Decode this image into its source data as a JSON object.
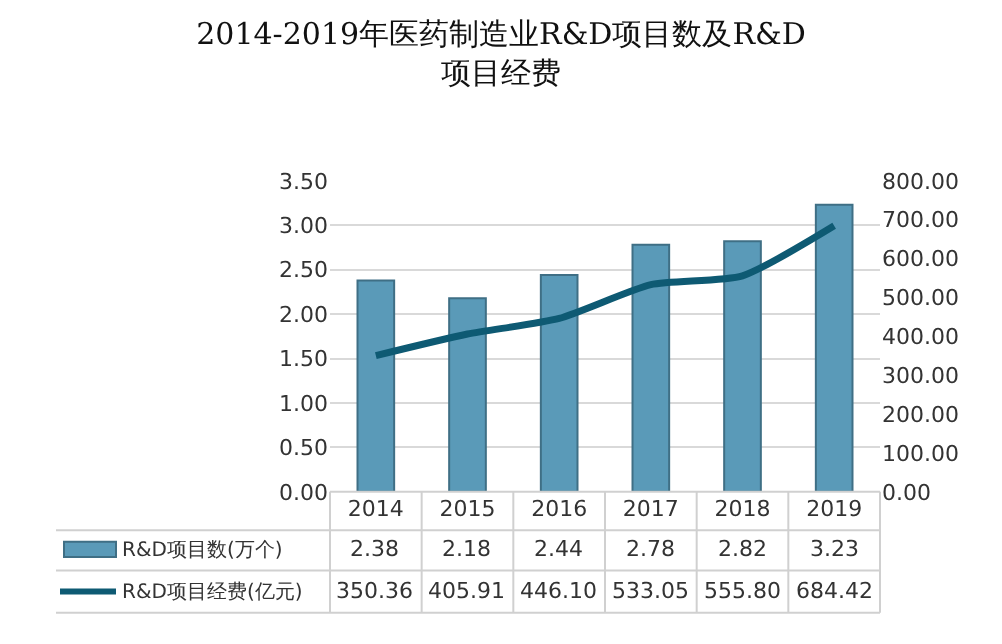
{
  "chart_data": {
    "type": "bar",
    "title": "2014-2019年医药制造业R&D项目数及R&D\n项目经费",
    "categories": [
      "2014",
      "2015",
      "2016",
      "2017",
      "2018",
      "2019"
    ],
    "series": [
      {
        "name": "R&D项目数(万个)",
        "color": "#5a9ab8",
        "values": [
          2.38,
          2.18,
          2.44,
          2.78,
          2.82,
          3.23
        ],
        "value_labels": [
          "2.38",
          "2.18",
          "2.44",
          "2.78",
          "2.82",
          "3.23"
        ]
      },
      {
        "name": "R&D项目经费(亿元)",
        "type": "line",
        "axis": "y2",
        "color": "#0e5a73",
        "values": [
          350.36,
          405.91,
          446.1,
          533.05,
          555.8,
          684.42
        ],
        "value_labels": [
          "350.36",
          "405.91",
          "446.10",
          "533.05",
          "555.80",
          "684.42"
        ]
      }
    ],
    "ylim": [
      0,
      3.5
    ],
    "yticks": [
      {
        "value": 0,
        "label": "0.00"
      },
      {
        "value": 0.5,
        "label": "0.50"
      },
      {
        "value": 1,
        "label": "1.00"
      },
      {
        "value": 1.5,
        "label": "1.50"
      },
      {
        "value": 2,
        "label": "2.00"
      },
      {
        "value": 2.5,
        "label": "2.50"
      },
      {
        "value": 3,
        "label": "3.00"
      },
      {
        "value": 3.5,
        "label": "3.50"
      }
    ],
    "y2lim": [
      0,
      800
    ],
    "y2ticks": [
      {
        "value": 0,
        "label": "0.00"
      },
      {
        "value": 100,
        "label": "100.00"
      },
      {
        "value": 200,
        "label": "200.00"
      },
      {
        "value": 300,
        "label": "300.00"
      },
      {
        "value": 400,
        "label": "400.00"
      },
      {
        "value": 500,
        "label": "500.00"
      },
      {
        "value": 600,
        "label": "600.00"
      },
      {
        "value": 700,
        "label": "700.00"
      },
      {
        "value": 800,
        "label": "800.00"
      }
    ],
    "grid": "y",
    "legend": "bottom",
    "marker": "none",
    "line_style": "solid"
  }
}
